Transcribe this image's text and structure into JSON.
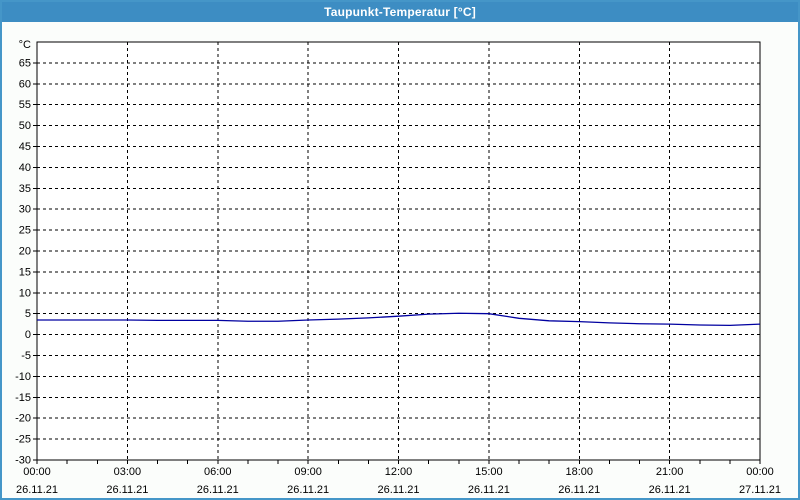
{
  "window": {
    "title": "Taupunkt-Temperatur [°C]"
  },
  "colors": {
    "titlebar": "#3d8dc3",
    "title_text": "#ffffff",
    "frame_border": "#4596c8",
    "background": "#fbfdfb",
    "plot_background": "#ffffff",
    "grid": "#000000",
    "axis": "#000000",
    "tick_text": "#000000",
    "line": "#0000a0"
  },
  "chart_data": {
    "type": "line",
    "title": "Taupunkt-Temperatur [°C]",
    "ylabel": "°C",
    "xlabel": "",
    "ylim": [
      -30,
      70
    ],
    "y_tick_step": 5,
    "y_ticks": [
      65,
      60,
      55,
      50,
      45,
      40,
      35,
      30,
      25,
      20,
      15,
      10,
      5,
      0,
      -5,
      -10,
      -15,
      -20,
      -25,
      -30
    ],
    "x_hours_span": 24,
    "minor_tick_hours": 1,
    "grid_style": "dashed",
    "legend": "none",
    "x_major_ticks": [
      {
        "time": "00:00",
        "date": "26.11.21"
      },
      {
        "time": "03:00",
        "date": "26.11.21"
      },
      {
        "time": "06:00",
        "date": "26.11.21"
      },
      {
        "time": "09:00",
        "date": "26.11.21"
      },
      {
        "time": "12:00",
        "date": "26.11.21"
      },
      {
        "time": "15:00",
        "date": "26.11.21"
      },
      {
        "time": "18:00",
        "date": "26.11.21"
      },
      {
        "time": "21:00",
        "date": "26.11.21"
      },
      {
        "time": "00:00",
        "date": "27.11.21"
      }
    ],
    "series": [
      {
        "name": "Taupunkt-Temperatur",
        "color": "#0000a0",
        "x_hours": [
          0,
          1,
          2,
          3,
          4,
          5,
          6,
          7,
          8,
          9,
          10,
          11,
          12,
          13,
          14,
          15,
          16,
          17,
          18,
          19,
          20,
          21,
          22,
          23,
          24
        ],
        "values": [
          3.5,
          3.5,
          3.5,
          3.5,
          3.4,
          3.4,
          3.4,
          3.2,
          3.2,
          3.5,
          3.7,
          4.0,
          4.4,
          4.9,
          5.1,
          5.0,
          3.9,
          3.3,
          3.1,
          2.8,
          2.6,
          2.5,
          2.3,
          2.2,
          2.5
        ]
      }
    ]
  }
}
